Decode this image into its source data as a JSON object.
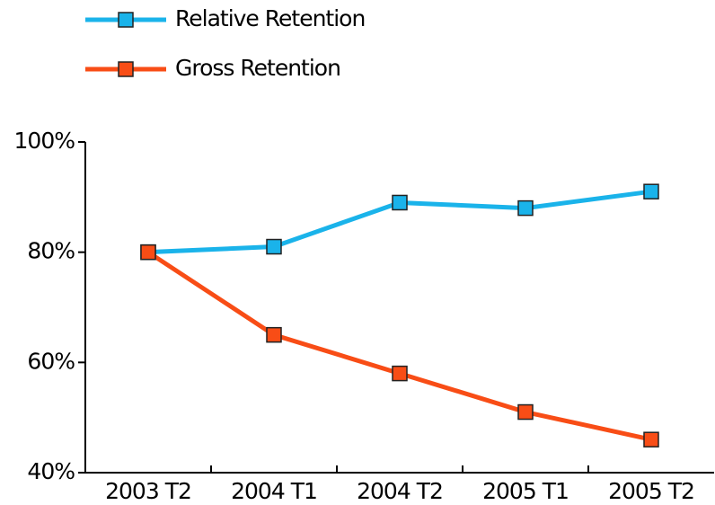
{
  "chart_data": {
    "type": "line",
    "categories": [
      "2003 T2",
      "2004 T1",
      "2004 T2",
      "2005 T1",
      "2005 T2"
    ],
    "series": [
      {
        "name": "Relative Retention",
        "color": "#1ab3ea",
        "values": [
          80,
          81,
          89,
          88,
          91
        ]
      },
      {
        "name": "Gross Retention",
        "color": "#f84d16",
        "values": [
          80,
          65,
          58,
          51,
          46
        ]
      }
    ],
    "ylim": [
      40,
      100
    ],
    "yticks": [
      {
        "value": 40,
        "label": "40%"
      },
      {
        "value": 60,
        "label": "60%"
      },
      {
        "value": 80,
        "label": "80%"
      },
      {
        "value": 100,
        "label": "100%"
      }
    ],
    "grid": false,
    "legend": "top-left"
  }
}
